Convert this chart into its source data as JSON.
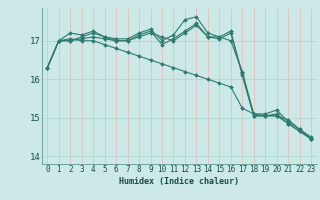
{
  "title": "",
  "xlabel": "Humidex (Indice chaleur)",
  "ylabel": "",
  "bg_color": "#cce9e7",
  "grid_color": "#aad4d0",
  "line_color": "#2d7a6e",
  "xlim": [
    -0.5,
    23.5
  ],
  "ylim": [
    13.8,
    17.85
  ],
  "yticks": [
    14,
    15,
    16,
    17
  ],
  "xticks": [
    0,
    1,
    2,
    3,
    4,
    5,
    6,
    7,
    8,
    9,
    10,
    11,
    12,
    13,
    14,
    15,
    16,
    17,
    18,
    19,
    20,
    21,
    22,
    23
  ],
  "series": [
    [
      16.3,
      17.0,
      17.0,
      17.1,
      17.2,
      17.1,
      17.0,
      17.0,
      17.1,
      17.2,
      17.1,
      17.0,
      17.2,
      17.4,
      17.1,
      17.1,
      17.0,
      16.2,
      15.1,
      15.1,
      15.2,
      14.9,
      14.7,
      14.5
    ],
    [
      16.3,
      17.0,
      17.2,
      17.15,
      17.25,
      17.1,
      17.05,
      17.05,
      17.2,
      17.3,
      17.0,
      17.15,
      17.55,
      17.62,
      17.2,
      17.1,
      17.25,
      16.1,
      15.05,
      15.05,
      15.1,
      14.85,
      14.65,
      14.45
    ],
    [
      16.3,
      17.0,
      17.05,
      17.0,
      17.0,
      16.9,
      16.8,
      16.7,
      16.6,
      16.5,
      16.4,
      16.3,
      16.2,
      16.1,
      16.0,
      15.9,
      15.8,
      15.25,
      15.1,
      15.05,
      15.05,
      14.95,
      14.7,
      14.45
    ],
    [
      16.3,
      17.0,
      17.0,
      17.05,
      17.1,
      17.05,
      17.0,
      17.0,
      17.15,
      17.25,
      16.9,
      17.05,
      17.25,
      17.45,
      17.1,
      17.05,
      17.2,
      16.15,
      15.05,
      15.05,
      15.05,
      14.85,
      14.65,
      14.45
    ]
  ]
}
